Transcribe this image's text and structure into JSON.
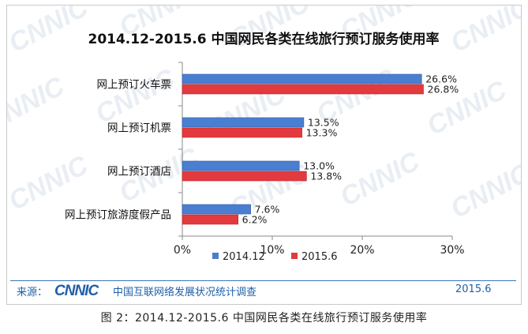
{
  "chart_data": {
    "type": "bar",
    "orientation": "horizontal",
    "title": "2014.12-2015.6 中国网民各类在线旅行预订服务使用率",
    "categories": [
      "网上预订火车票",
      "网上预订机票",
      "网上预订酒店",
      "网上预订旅游度假产品"
    ],
    "series": [
      {
        "name": "2014.12",
        "color": "#4a7ed0",
        "values": [
          26.6,
          13.5,
          13.0,
          7.6
        ],
        "labels": [
          "26.6%",
          "13.5%",
          "13.0%",
          "7.6%"
        ]
      },
      {
        "name": "2015.6",
        "color": "#e23a3e",
        "values": [
          26.8,
          13.3,
          13.8,
          6.2
        ],
        "labels": [
          "26.8%",
          "13.3%",
          "13.8%",
          "6.2%"
        ]
      }
    ],
    "xlim": [
      0,
      30
    ],
    "xticks": [
      0,
      10,
      20,
      30
    ],
    "xtick_labels": [
      "0%",
      "10%",
      "20%",
      "30%"
    ],
    "xlabel": "",
    "ylabel": "",
    "grid": false,
    "legend_position": "bottom"
  },
  "source": {
    "label": "来源：",
    "logo_text": "CNNIC",
    "org": "中国互联网络发展状况统计调查",
    "date": "2015.6"
  },
  "caption": "图 2：2014.12-2015.6  中国网民各类在线旅行预订服务使用率",
  "watermark_text": "CNNIC"
}
